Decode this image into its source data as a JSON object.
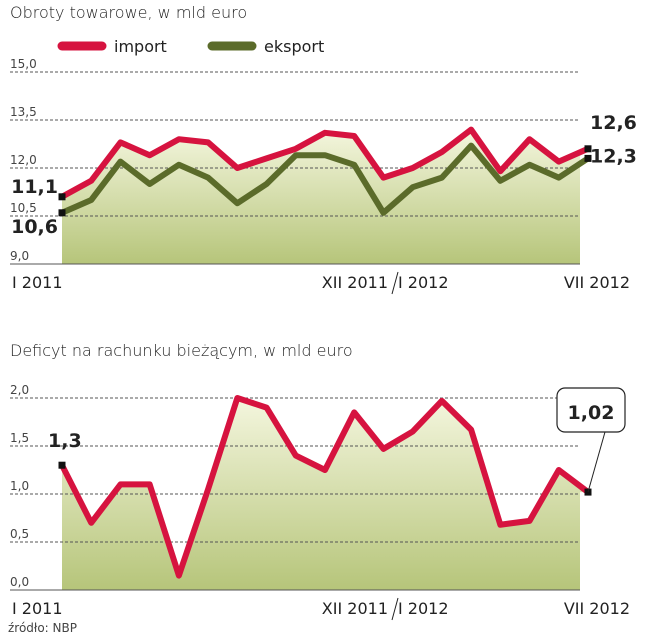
{
  "chart_data": [
    {
      "type": "line",
      "title": "Obroty towarowe, w mld euro",
      "categories": [
        "I 2011",
        null,
        null,
        null,
        null,
        null,
        null,
        null,
        null,
        null,
        null,
        "XII 2011",
        "I 2012",
        null,
        null,
        null,
        null,
        null,
        "VII 2012"
      ],
      "series": [
        {
          "name": "import",
          "color": "#d6133f",
          "values": [
            11.1,
            11.6,
            12.8,
            12.4,
            12.9,
            12.8,
            12.0,
            12.3,
            12.6,
            13.1,
            13.0,
            11.7,
            12.0,
            12.5,
            13.2,
            11.9,
            12.9,
            12.2,
            12.6
          ],
          "value_labels": [
            "11,1",
            null,
            null,
            null,
            null,
            null,
            null,
            null,
            null,
            null,
            null,
            null,
            null,
            null,
            null,
            null,
            null,
            null,
            "12,6"
          ]
        },
        {
          "name": "eksport",
          "color": "#5b6b2a",
          "values": [
            10.6,
            11.0,
            12.2,
            11.5,
            12.1,
            11.7,
            10.9,
            11.5,
            12.4,
            12.4,
            12.1,
            10.6,
            11.4,
            11.7,
            12.7,
            11.6,
            12.1,
            11.7,
            12.3
          ],
          "value_labels": [
            "10,6",
            null,
            null,
            null,
            null,
            null,
            null,
            null,
            null,
            null,
            null,
            null,
            null,
            null,
            null,
            null,
            null,
            null,
            "12,3"
          ]
        }
      ],
      "ylim": [
        9,
        15
      ],
      "yticks": [
        {
          "value": 9,
          "label": "9,0"
        },
        {
          "value": 10.5,
          "label": "10,5"
        },
        {
          "value": 12,
          "label": "12,0"
        },
        {
          "value": 13.5,
          "label": "13,5"
        },
        {
          "value": 15,
          "label": "15,0"
        }
      ],
      "grid": true,
      "legend": "top"
    },
    {
      "type": "line",
      "title": "Deficyt na rachunku bieżącym, w mld euro",
      "categories": [
        "I 2011",
        null,
        null,
        null,
        null,
        null,
        null,
        null,
        null,
        null,
        null,
        "XII 2011",
        "I 2012",
        null,
        null,
        null,
        null,
        null,
        "VII 2012"
      ],
      "series": [
        {
          "color": "#d6133f",
          "values": [
            1.3,
            0.7,
            1.1,
            1.1,
            0.15,
            1.05,
            2.0,
            1.9,
            1.4,
            1.25,
            1.85,
            1.47,
            1.65,
            1.97,
            1.67,
            0.68,
            0.72,
            1.25,
            1.02
          ],
          "value_labels": [
            "1,3",
            null,
            null,
            null,
            null,
            null,
            null,
            null,
            null,
            null,
            null,
            null,
            null,
            null,
            null,
            null,
            null,
            null,
            "1,02"
          ]
        }
      ],
      "ylim": [
        0,
        2
      ],
      "yticks": [
        {
          "value": 0,
          "label": "0,0"
        },
        {
          "value": 0.5,
          "label": "0,5"
        },
        {
          "value": 1,
          "label": "1,0"
        },
        {
          "value": 1.5,
          "label": "1,5"
        },
        {
          "value": 2,
          "label": "2,0"
        }
      ],
      "grid": true,
      "source": "źródło: NBP"
    }
  ]
}
